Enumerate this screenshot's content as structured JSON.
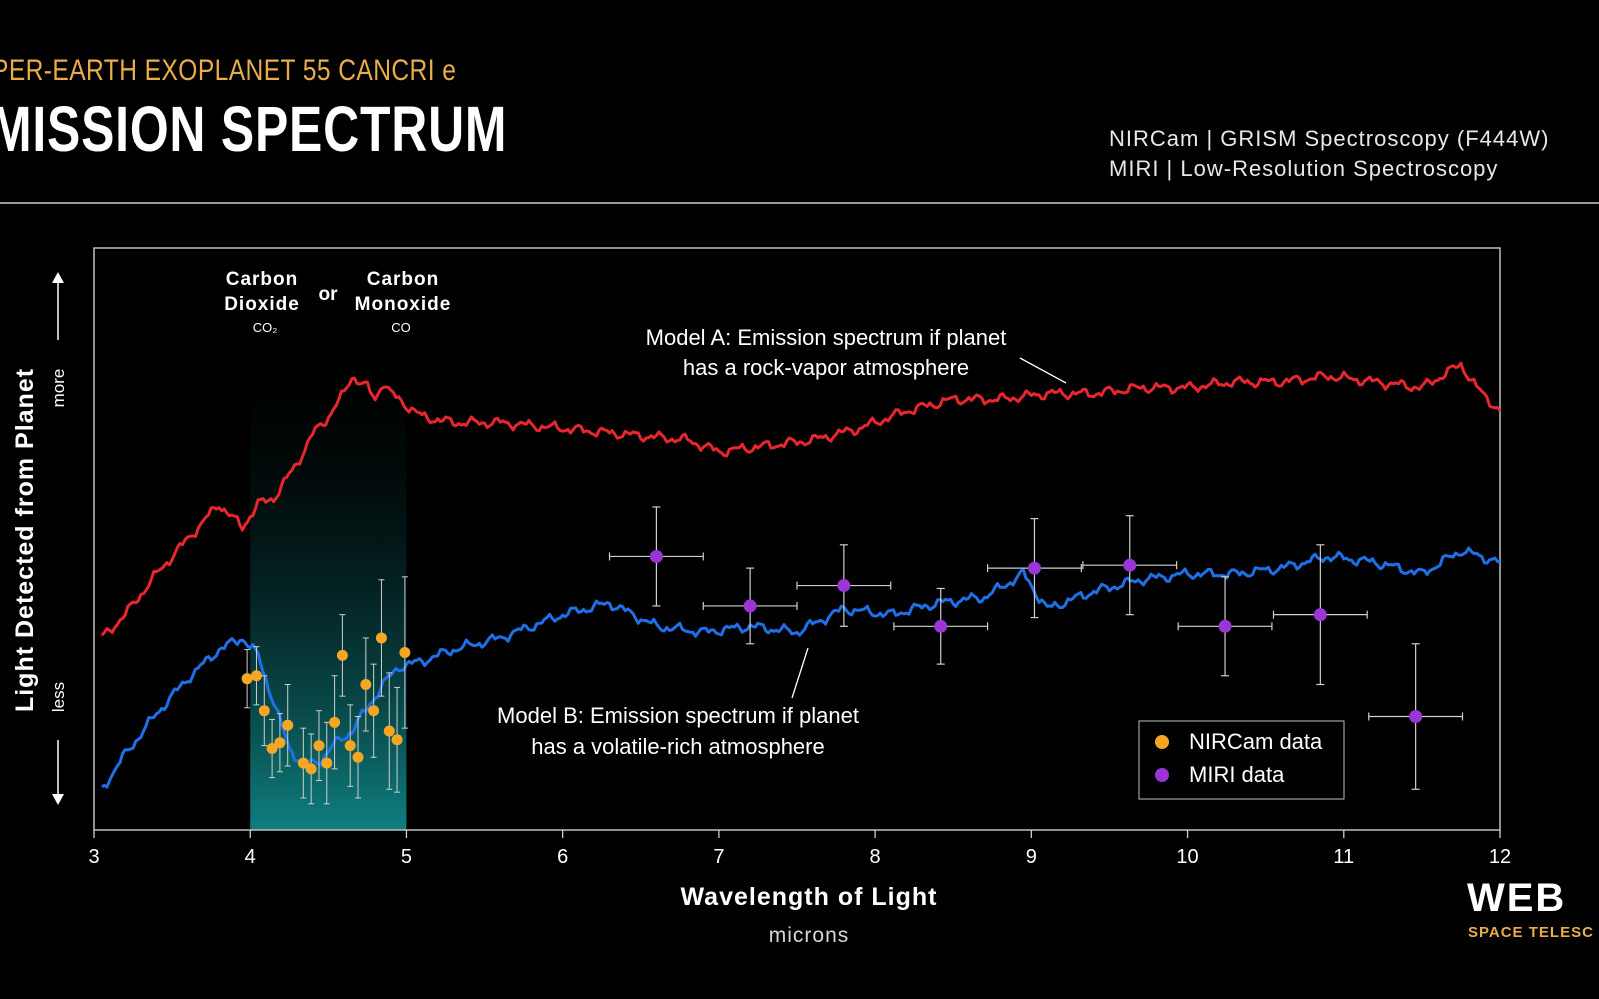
{
  "header": {
    "kicker": "PER-EARTH EXOPLANET 55 CANCRI e",
    "title": "MISSION SPECTRUM",
    "instrument_1": "NIRCam | GRISM Spectroscopy (F444W)",
    "instrument_2": "MIRI | Low-Resolution Spectroscopy"
  },
  "logo": {
    "name": "WEB",
    "tagline": "SPACE TELESC"
  },
  "colors": {
    "model_a": "#e8262e",
    "model_b": "#1f6fe6",
    "nircam": "#f5a623",
    "miri": "#9b35d6",
    "band": "#0f7f80",
    "kicker": "#e8ad4a"
  },
  "chart_data": {
    "type": "line",
    "xlabel": "Wavelength of Light",
    "xunit": "microns",
    "ylabel": "Light Detected from Planet",
    "y_more": "more",
    "y_less": "less",
    "xlim": [
      3,
      12
    ],
    "ylim": [
      0,
      100
    ],
    "x_ticks": [
      "3",
      "4",
      "5",
      "6",
      "7",
      "8",
      "9",
      "10",
      "11",
      "12"
    ],
    "band": {
      "x_range": [
        4,
        5
      ],
      "label_left_1": "Carbon",
      "label_left_2": "Dioxide",
      "label_left_formula": "CO₂",
      "label_or": "or",
      "label_right_1": "Carbon",
      "label_right_2": "Monoxide",
      "label_right_formula": "CO"
    },
    "annotation_a_1": "Model A: Emission spectrum if planet",
    "annotation_a_2": "has a rock-vapor atmosphere",
    "annotation_b_1": "Model B: Emission spectrum if planet",
    "annotation_b_2": "has a volatile-rich atmosphere",
    "legend": {
      "position": "bottom-right",
      "nircam_label": "NIRCam data",
      "miri_label": "MIRI data"
    },
    "series": [
      {
        "name": "Model A",
        "x": [
          3.05,
          3.2,
          3.4,
          3.6,
          3.8,
          3.95,
          4.05,
          4.15,
          4.3,
          4.4,
          4.5,
          4.6,
          4.65,
          4.7,
          4.75,
          4.8,
          4.85,
          4.9,
          5.0,
          5.1,
          5.3,
          5.6,
          6.0,
          6.4,
          6.8,
          7.0,
          7.3,
          7.6,
          7.9,
          8.2,
          8.5,
          8.8,
          9.1,
          9.4,
          9.7,
          10.0,
          10.3,
          10.6,
          10.9,
          11.2,
          11.5,
          11.75,
          11.85,
          12.0
        ],
        "y": [
          33,
          37,
          44,
          50,
          56,
          52,
          56,
          57,
          63,
          68,
          71,
          75,
          78,
          77,
          76,
          74,
          77,
          75,
          73,
          71,
          70,
          70,
          69,
          68,
          67,
          65,
          66,
          67,
          69,
          72,
          74,
          74,
          75,
          75,
          76,
          76,
          77,
          77,
          78,
          77,
          76,
          80,
          76,
          72
        ]
      },
      {
        "name": "Model B",
        "x": [
          3.05,
          3.2,
          3.4,
          3.6,
          3.8,
          3.95,
          4.05,
          4.15,
          4.25,
          4.35,
          4.45,
          4.55,
          4.65,
          4.75,
          4.85,
          4.95,
          5.1,
          5.3,
          5.6,
          6.0,
          6.3,
          6.6,
          6.9,
          7.2,
          7.5,
          7.8,
          8.1,
          8.4,
          8.7,
          8.95,
          9.1,
          9.4,
          9.7,
          10.0,
          10.3,
          10.6,
          10.9,
          11.2,
          11.5,
          11.75,
          12.0
        ],
        "y": [
          7,
          13,
          20,
          26,
          31,
          33,
          30,
          22,
          14,
          11,
          12,
          15,
          17,
          21,
          25,
          28,
          29,
          31,
          33,
          37,
          39,
          35,
          34,
          35,
          34,
          38,
          37,
          39,
          40,
          44,
          38,
          41,
          43,
          44,
          44,
          45,
          47,
          46,
          44,
          48,
          46
        ]
      }
    ],
    "nircam_data": [
      {
        "x": 3.98,
        "y": 26,
        "err": 5
      },
      {
        "x": 4.04,
        "y": 26.5,
        "err": 5
      },
      {
        "x": 4.09,
        "y": 20.5,
        "err": 6
      },
      {
        "x": 4.14,
        "y": 14,
        "err": 5
      },
      {
        "x": 4.19,
        "y": 15,
        "err": 5
      },
      {
        "x": 4.24,
        "y": 18,
        "err": 7
      },
      {
        "x": 4.34,
        "y": 11.5,
        "err": 6
      },
      {
        "x": 4.39,
        "y": 10.5,
        "err": 6
      },
      {
        "x": 4.44,
        "y": 14.5,
        "err": 6
      },
      {
        "x": 4.49,
        "y": 11.5,
        "err": 7
      },
      {
        "x": 4.54,
        "y": 18.5,
        "err": 8
      },
      {
        "x": 4.59,
        "y": 30,
        "err": 7
      },
      {
        "x": 4.64,
        "y": 14.5,
        "err": 7
      },
      {
        "x": 4.69,
        "y": 12.5,
        "err": 7
      },
      {
        "x": 4.74,
        "y": 25,
        "err": 8
      },
      {
        "x": 4.79,
        "y": 20.5,
        "err": 8
      },
      {
        "x": 4.84,
        "y": 33,
        "err": 10
      },
      {
        "x": 4.89,
        "y": 17,
        "err": 10
      },
      {
        "x": 4.94,
        "y": 15.5,
        "err": 9
      },
      {
        "x": 4.99,
        "y": 30.5,
        "err": 13
      }
    ],
    "miri_data": [
      {
        "x": 6.6,
        "y": 47,
        "xerr": 0.3,
        "yerr": 8.5
      },
      {
        "x": 7.2,
        "y": 38.5,
        "xerr": 0.3,
        "yerr": 6.5
      },
      {
        "x": 7.8,
        "y": 42,
        "xerr": 0.3,
        "yerr": 7
      },
      {
        "x": 8.42,
        "y": 35,
        "xerr": 0.3,
        "yerr": 6.5
      },
      {
        "x": 9.02,
        "y": 45,
        "xerr": 0.3,
        "yerr": 8.5
      },
      {
        "x": 9.63,
        "y": 45.5,
        "xerr": 0.3,
        "yerr": 8.5
      },
      {
        "x": 10.24,
        "y": 35,
        "xerr": 0.3,
        "yerr": 8.5
      },
      {
        "x": 10.85,
        "y": 37,
        "xerr": 0.3,
        "yerr": 12
      },
      {
        "x": 11.46,
        "y": 19.5,
        "xerr": 0.3,
        "yerr": 12.5
      }
    ]
  }
}
